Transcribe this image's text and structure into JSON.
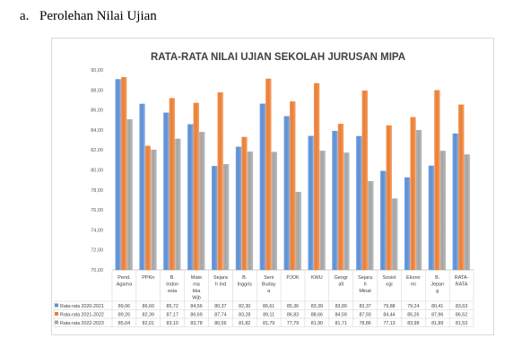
{
  "heading": {
    "number": "a.",
    "text": "Perolehan Nilai Ujian"
  },
  "chart_data": {
    "type": "bar",
    "title": "RATA-RATA NILAI UJIAN  SEKOLAH JURUSAN MIPA",
    "ylim": [
      70,
      90
    ],
    "yticks": [
      "70,00",
      "72,00",
      "74,00",
      "76,00",
      "78,00",
      "80,00",
      "82,00",
      "84,00",
      "86,00",
      "88,00",
      "90,00"
    ],
    "categories": [
      [
        "Pend.",
        "Agama"
      ],
      [
        "PPKn"
      ],
      [
        "B.",
        "Indon",
        "esia"
      ],
      [
        "Mate",
        "ma",
        "tika",
        "Wjb"
      ],
      [
        "Sejara",
        "h Ind"
      ],
      [
        "B.",
        "Inggris"
      ],
      [
        "Seni",
        "Buday",
        "a"
      ],
      [
        "PJOK"
      ],
      [
        "KWU"
      ],
      [
        "Geogr",
        "afi"
      ],
      [
        "Sejara",
        "h",
        "Minat"
      ],
      [
        "Sosiol",
        "ogi"
      ],
      [
        "Ekono",
        "mi"
      ],
      [
        "B.",
        "Jepan",
        "g"
      ],
      [
        "RATA-",
        "RATA"
      ]
    ],
    "series": [
      {
        "name": "Rata-rata 2020-2021",
        "color": "#5b8ed6",
        "values": [
          89.06,
          86.6,
          85.72,
          84.56,
          80.37,
          82.3,
          86.61,
          85.36,
          83.39,
          83.89,
          83.37,
          79.88,
          79.24,
          80.41,
          83.63
        ],
        "labels": [
          "89,06",
          "86,60",
          "85,72",
          "84,56",
          "80,37",
          "82,30",
          "86,61",
          "85,36",
          "83,39",
          "83,89",
          "83,37",
          "79,88",
          "79,24",
          "80,41",
          "83,63"
        ]
      },
      {
        "name": "Rata-rata 2021-2022",
        "color": "#ed7d31",
        "values": [
          89.26,
          82.39,
          87.17,
          86.69,
          87.74,
          83.28,
          89.11,
          86.83,
          88.66,
          84.59,
          87.93,
          84.44,
          85.26,
          87.96,
          86.52
        ],
        "labels": [
          "89,26",
          "82,39",
          "87,17",
          "86,69",
          "87,74",
          "83,28",
          "89,11",
          "86,83",
          "88,66",
          "84,59",
          "87,93",
          "84,44",
          "85,26",
          "87,96",
          "86,52"
        ]
      },
      {
        "name": "Rata-rata 2022-2023",
        "color": "#a5a5a5",
        "values": [
          85.04,
          82.01,
          83.1,
          83.78,
          80.56,
          81.82,
          81.79,
          77.79,
          81.9,
          81.71,
          78.86,
          77.13,
          83.98,
          81.89,
          81.53
        ],
        "labels": [
          "85,04",
          "82,01",
          "83,10",
          "83,78",
          "80,56",
          "81,82",
          "81,79",
          "77,79",
          "81,90",
          "81,71",
          "78,86",
          "77,13",
          "83,98",
          "81,89",
          "81,53"
        ]
      }
    ],
    "grid": false,
    "legend": "data-table-below"
  }
}
